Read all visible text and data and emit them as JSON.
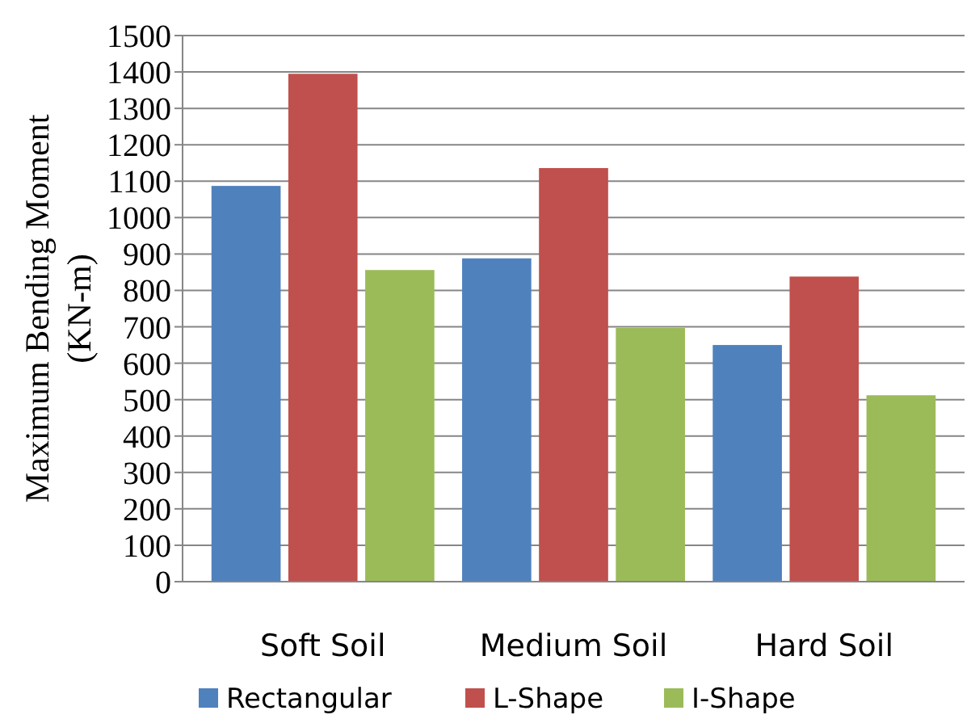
{
  "chart_data": {
    "type": "bar",
    "ylabel": "Maximum Bending Moment (KN-m)",
    "categories": [
      "Soft Soil",
      "Medium Soil",
      "Hard Soil"
    ],
    "series": [
      {
        "name": "Rectangular",
        "color": "#4f81bd",
        "values": [
          1087,
          888,
          650
        ]
      },
      {
        "name": "L-Shape",
        "color": "#c0504d",
        "values": [
          1395,
          1136,
          838
        ]
      },
      {
        "name": "I-Shape",
        "color": "#9bbb59",
        "values": [
          856,
          697,
          512
        ]
      }
    ],
    "ylim": [
      0,
      1500
    ],
    "yticks": [
      0,
      100,
      200,
      300,
      400,
      500,
      600,
      700,
      800,
      900,
      1000,
      1100,
      1200,
      1300,
      1400,
      1500
    ],
    "grid": "y",
    "legend": "bottom"
  }
}
